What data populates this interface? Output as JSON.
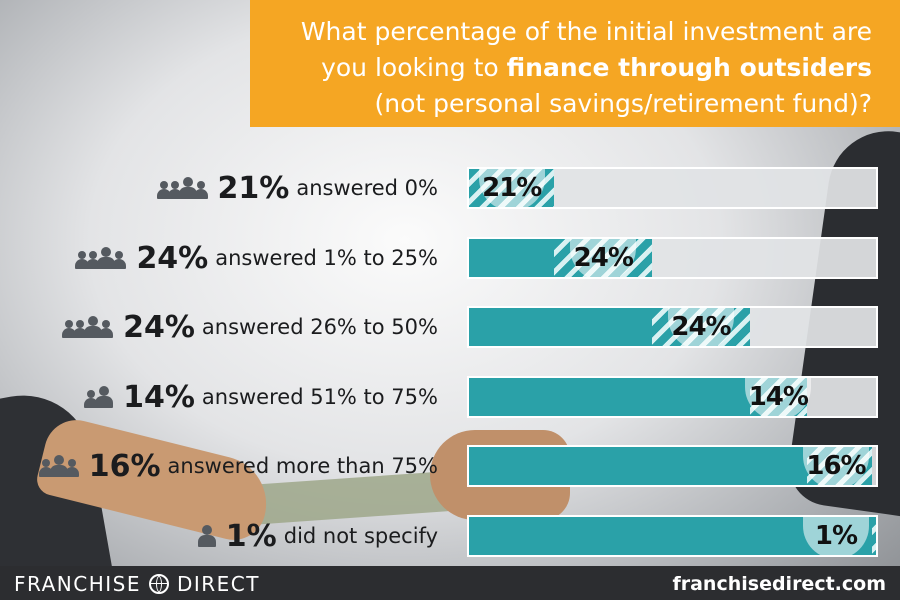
{
  "question": {
    "line1": "What percentage of the initial investment are",
    "line2_prefix": "you looking to ",
    "line2_bold": "finance through outsiders",
    "line3": "(not personal savings/retirement fund)?"
  },
  "chart_data": {
    "type": "bar",
    "categories": [
      "answered 0%",
      "answered 1% to 25%",
      "answered 26% to 50%",
      "answered 51% to 75%",
      "answered more than 75%",
      "did not specify"
    ],
    "values": [
      21,
      24,
      24,
      14,
      16,
      1
    ],
    "labels": [
      "21%",
      "24%",
      "24%",
      "14%",
      "16%",
      "1%"
    ],
    "people_icons": [
      4,
      4,
      4,
      2,
      3,
      1
    ],
    "colors": {
      "accent": "#2aa1a8",
      "header": "#f5a623",
      "track": "#e1e3e5"
    }
  },
  "footer": {
    "brand_left": "FRANCHISE",
    "brand_right": "DIRECT",
    "brand_icon": "globe-icon",
    "site": "franchisedirect.com"
  }
}
